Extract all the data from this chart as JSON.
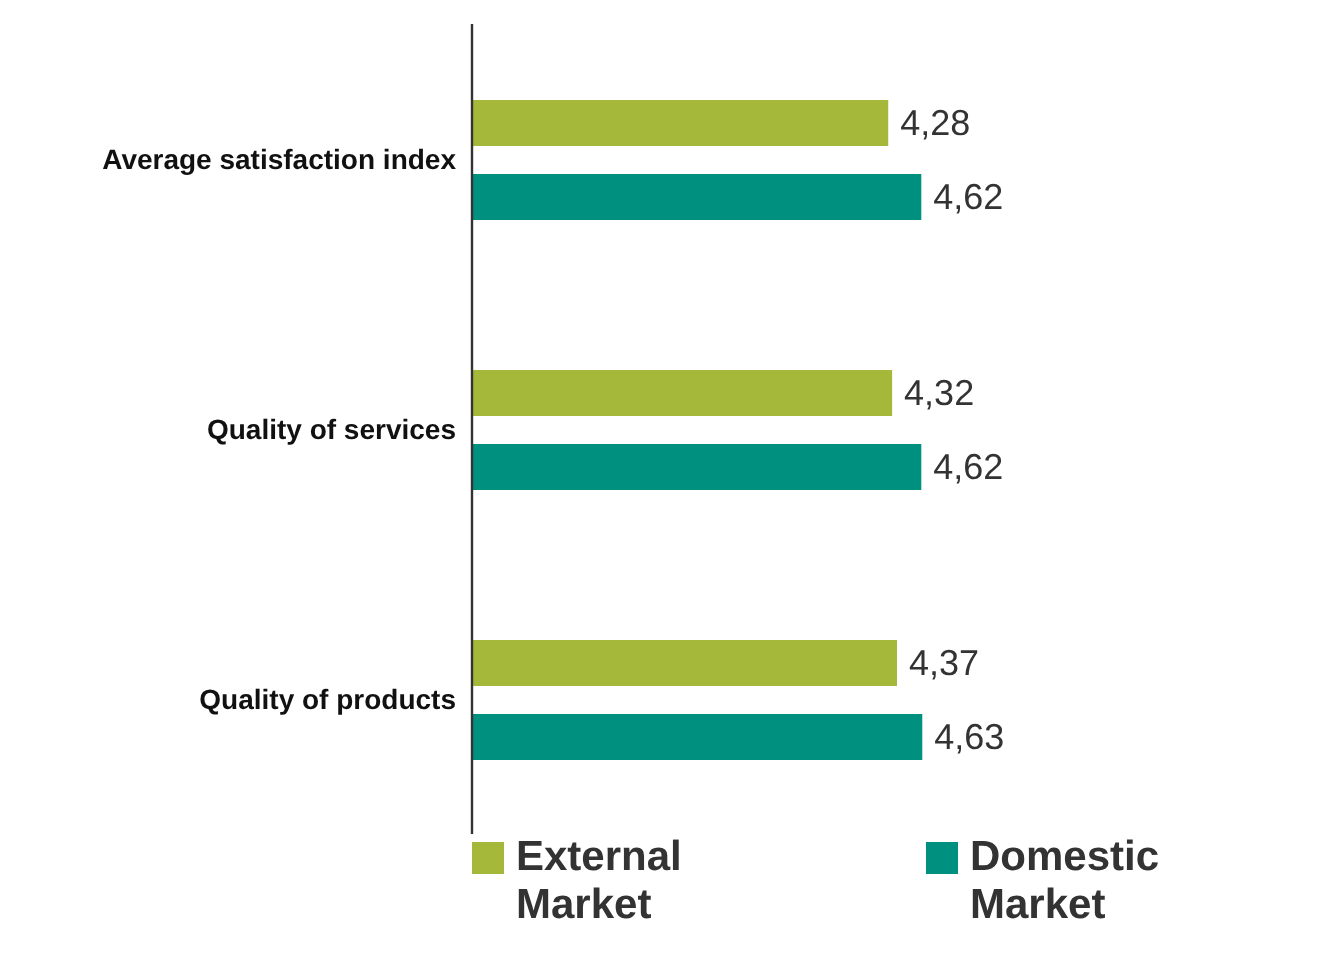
{
  "chart_data": {
    "type": "bar",
    "orientation": "horizontal",
    "categories": [
      "Average satisfaction index",
      "Quality of services",
      "Quality of products"
    ],
    "series": [
      {
        "name": "External Market",
        "color": "#a5b83a",
        "values": [
          4.28,
          4.32,
          4.37
        ],
        "value_labels": [
          "4,28",
          "4,32",
          "4,37"
        ]
      },
      {
        "name": "Domestic Market",
        "color": "#00907f",
        "values": [
          4.62,
          4.62,
          4.63
        ],
        "value_labels": [
          "4,62",
          "4,62",
          "4,63"
        ]
      }
    ],
    "grid": false,
    "legend": "bottom"
  }
}
